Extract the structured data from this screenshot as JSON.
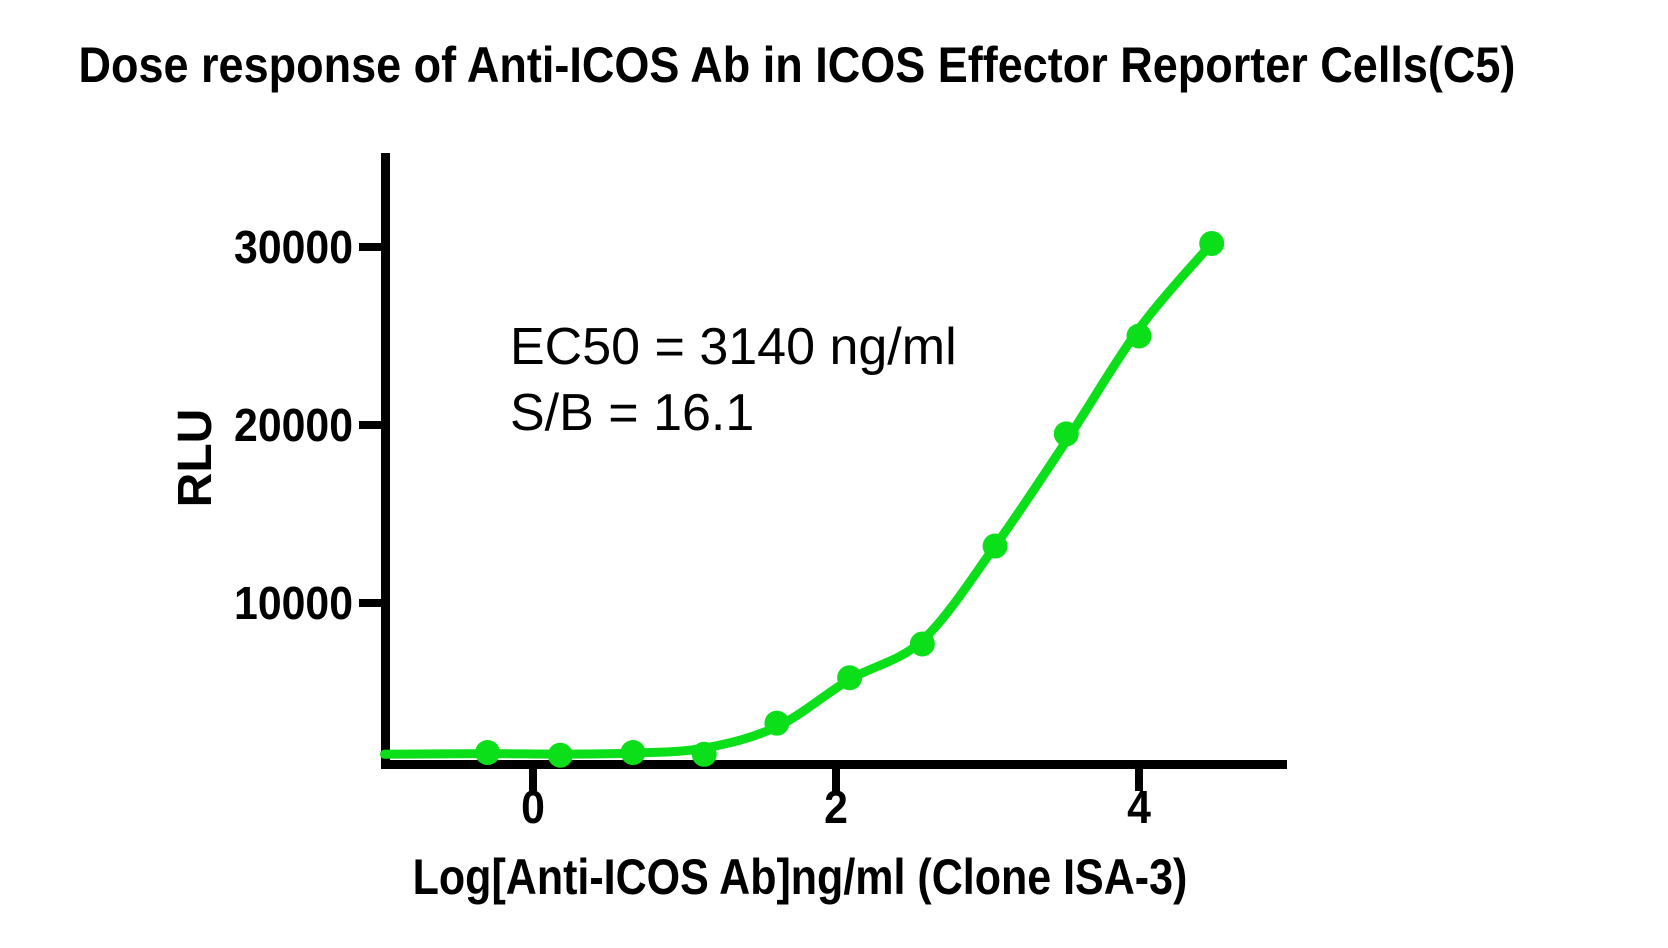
{
  "title": "Dose response of Anti-ICOS Ab in ICOS Effector Reporter Cells(C5)",
  "annotation": {
    "line1": "EC50 = 3140 ng/ml",
    "line2": "S/B = 16.1"
  },
  "colors": {
    "curve_green": "#0bdf19",
    "axis_black": "#000000"
  },
  "chart_data": {
    "type": "scatter",
    "title": "Dose response of Anti-ICOS Ab in ICOS Effector Reporter Cells(C5)",
    "xlabel": "Log[Anti-ICOS Ab]ng/ml (Clone ISA-3)",
    "ylabel": "RLU",
    "xlim": [
      -1,
      5
    ],
    "ylim": [
      0,
      35000
    ],
    "x_ticks": [
      0,
      2,
      4
    ],
    "y_ticks": [
      10000,
      20000,
      30000
    ],
    "grid": false,
    "legend": "none",
    "ec50_ng_ml": 3140,
    "s_b_ratio": 16.1,
    "series": [
      {
        "name": "Anti-ICOS Ab (Clone ISA-3)",
        "marker": "circle",
        "color": "#0bdf19",
        "points": [
          {
            "x": -0.3,
            "y": 1600
          },
          {
            "x": 0.18,
            "y": 1450
          },
          {
            "x": 0.66,
            "y": 1600
          },
          {
            "x": 1.13,
            "y": 1500
          },
          {
            "x": 1.61,
            "y": 3250
          },
          {
            "x": 2.09,
            "y": 5800
          },
          {
            "x": 2.57,
            "y": 7700
          },
          {
            "x": 3.05,
            "y": 13200
          },
          {
            "x": 3.52,
            "y": 19500
          },
          {
            "x": 4.0,
            "y": 25000
          },
          {
            "x": 4.48,
            "y": 30200
          }
        ]
      }
    ],
    "fit_curve": {
      "x": [
        -0.98,
        -0.3,
        0.18,
        0.66,
        1.13,
        1.61,
        2.09,
        2.57,
        3.05,
        3.52,
        4.0,
        4.48
      ],
      "y": [
        1500,
        1540,
        1510,
        1570,
        1850,
        3050,
        5700,
        7900,
        13200,
        19100,
        25400,
        30200
      ]
    }
  }
}
